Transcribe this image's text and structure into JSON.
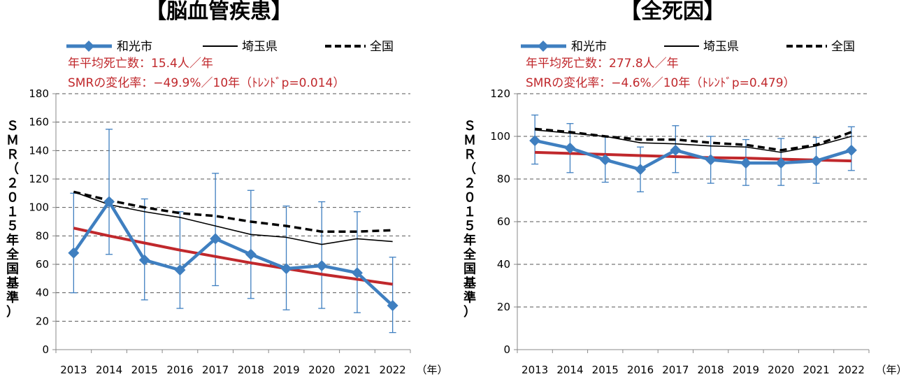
{
  "chart_data": [
    {
      "type": "line",
      "title": "【脳血管疾患】",
      "xlabel": "（年）",
      "ylabel": "ＳＭＲ（２０１５年全国基準）",
      "ylim": [
        0,
        180
      ],
      "ystep": 20,
      "categories": [
        "2013",
        "2014",
        "2015",
        "2016",
        "2017",
        "2018",
        "2019",
        "2020",
        "2021",
        "2022"
      ],
      "series": [
        {
          "name": "和光市",
          "color": "#3f7fc0",
          "style": "diamond",
          "values": [
            68,
            104,
            63,
            56,
            78,
            67,
            57,
            59,
            54,
            31
          ],
          "ci_low": [
            40,
            67,
            35,
            29,
            45,
            36,
            28,
            29,
            26,
            12
          ],
          "ci_high": [
            110,
            155,
            106,
            97,
            124,
            112,
            101,
            104,
            97,
            65
          ]
        },
        {
          "name": "埼玉県",
          "color": "#000000",
          "style": "solid",
          "values": [
            111,
            102,
            97,
            93,
            87,
            81,
            79,
            74,
            78,
            76
          ]
        },
        {
          "name": "全国",
          "color": "#000000",
          "style": "dashed",
          "values": [
            111,
            105,
            100,
            96,
            94,
            90,
            87,
            83,
            83,
            84
          ]
        },
        {
          "name": "trend",
          "color": "#c0282c",
          "style": "trend",
          "legend": false,
          "values": [
            85.5,
            80,
            75,
            70,
            65.5,
            61,
            57,
            53,
            49.5,
            46
          ]
        }
      ],
      "annotations": [
        "年平均死亡数：15.4人／年",
        "SMRの変化率：−49.9%／10年（ﾄﾚﾝﾄﾞp=0.014）"
      ]
    },
    {
      "type": "line",
      "title": "【全死因】",
      "xlabel": "（年）",
      "ylabel": "ＳＭＲ（２０１５年全国基準）",
      "ylim": [
        0,
        120
      ],
      "ystep": 20,
      "categories": [
        "2013",
        "2014",
        "2015",
        "2016",
        "2017",
        "2018",
        "2019",
        "2020",
        "2021",
        "2022"
      ],
      "series": [
        {
          "name": "和光市",
          "color": "#3f7fc0",
          "style": "diamond",
          "values": [
            98,
            94.5,
            89,
            84.5,
            93.5,
            89,
            87.5,
            87.5,
            88.5,
            93.5
          ],
          "ci_low": [
            87,
            83,
            78.5,
            74,
            83,
            78,
            77,
            77,
            78,
            84
          ],
          "ci_high": [
            110,
            106,
            100,
            95,
            105,
            100,
            98.5,
            99,
            99.5,
            104.5
          ]
        },
        {
          "name": "埼玉県",
          "color": "#000000",
          "style": "solid",
          "values": [
            103,
            101.5,
            100,
            97,
            96.5,
            95.5,
            95,
            92.5,
            95.5,
            100
          ]
        },
        {
          "name": "全国",
          "color": "#000000",
          "style": "dashed",
          "values": [
            103.5,
            102,
            100,
            98.5,
            98.5,
            97,
            96,
            93.5,
            96,
            102
          ]
        },
        {
          "name": "trend",
          "color": "#c0282c",
          "style": "trend",
          "legend": false,
          "values": [
            92.5,
            92,
            91.5,
            91,
            90.5,
            90,
            89.8,
            89.3,
            88.9,
            88.5
          ]
        }
      ],
      "annotations": [
        "年平均死亡数：277.8人／年",
        "SMRの変化率：−4.6%／10年（ﾄﾚﾝﾄﾞp=0.479）"
      ]
    }
  ]
}
